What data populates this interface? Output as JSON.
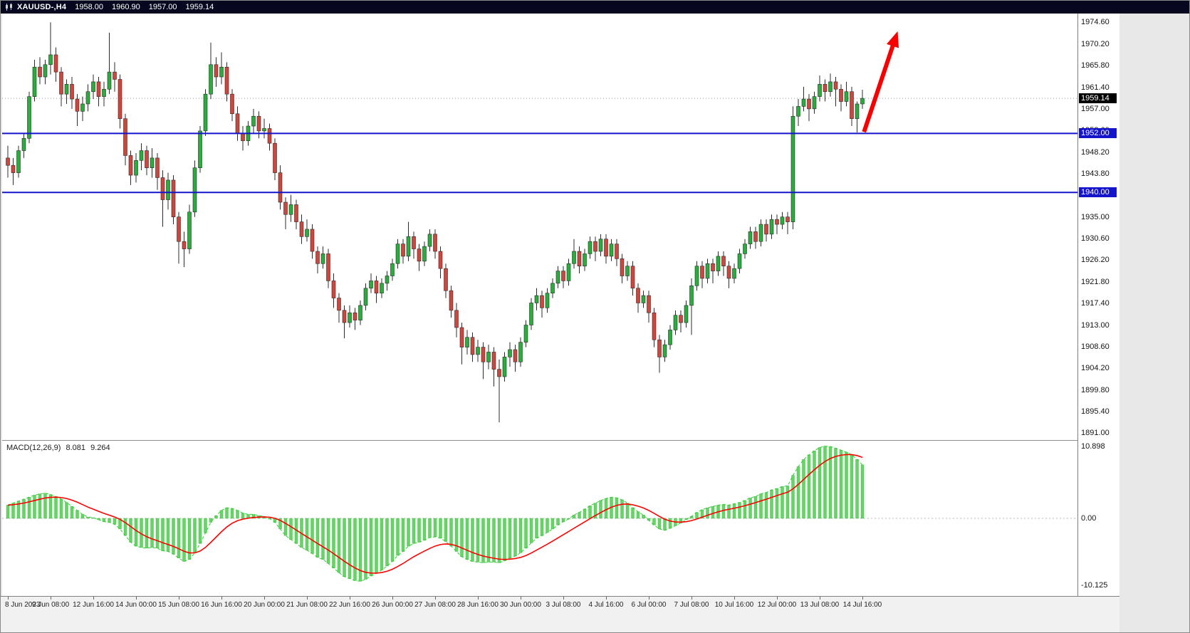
{
  "header": {
    "symbol_period": "XAUUSD-,H4",
    "open": "1958.00",
    "high": "1960.90",
    "low": "1957.00",
    "close": "1959.14"
  },
  "macd_panel": {
    "label": "MACD(12,26,9)",
    "main_value": "8.081",
    "signal_value": "9.264"
  },
  "colors": {
    "header_bg": "#07071f",
    "bull": "#27ae3b",
    "bear": "#d0453c",
    "wick": "#2c2c2c",
    "histogram": "#63d763",
    "signal_line": "#ff0000",
    "macd_dash": "#2fd02f",
    "level_line": "#1414cc",
    "level_label_bg": "#1414cc",
    "current_label_bg": "#000000",
    "arrow": "#f80000"
  },
  "chart_data": {
    "type": "candlestick",
    "symbol": "XAUUSD",
    "timeframe": "H4",
    "title": "XAUUSD-,H4",
    "price_range": {
      "max": 1976.4,
      "min": 1889.6
    },
    "price_axis_ticks": [
      "1974.60",
      "1970.20",
      "1965.80",
      "1961.40",
      "1957.00",
      "1952.60",
      "1948.20",
      "1943.80",
      "1939.40",
      "1935.00",
      "1930.60",
      "1926.20",
      "1921.80",
      "1917.40",
      "1913.00",
      "1908.60",
      "1904.20",
      "1899.80",
      "1895.40",
      "1891.00"
    ],
    "current_price": {
      "value": 1959.14,
      "label": "1959.14"
    },
    "levels": [
      {
        "value": 1952.0,
        "label": "1952.00"
      },
      {
        "value": 1940.0,
        "label": "1940.00"
      }
    ],
    "time_labels": [
      {
        "index": 0,
        "text": "8 Jun 2023"
      },
      {
        "index": 8,
        "text": "9 Jun 08:00"
      },
      {
        "index": 16,
        "text": "12 Jun 16:00"
      },
      {
        "index": 24,
        "text": "14 Jun 00:00"
      },
      {
        "index": 32,
        "text": "15 Jun 08:00"
      },
      {
        "index": 40,
        "text": "16 Jun 16:00"
      },
      {
        "index": 48,
        "text": "20 Jun 00:00"
      },
      {
        "index": 56,
        "text": "21 Jun 08:00"
      },
      {
        "index": 64,
        "text": "22 Jun 16:00"
      },
      {
        "index": 72,
        "text": "26 Jun 00:00"
      },
      {
        "index": 80,
        "text": "27 Jun 08:00"
      },
      {
        "index": 88,
        "text": "28 Jun 16:00"
      },
      {
        "index": 96,
        "text": "30 Jun 00:00"
      },
      {
        "index": 104,
        "text": "3 Jul 08:00"
      },
      {
        "index": 112,
        "text": "4 Jul 16:00"
      },
      {
        "index": 120,
        "text": "6 Jul 00:00"
      },
      {
        "index": 128,
        "text": "7 Jul 08:00"
      },
      {
        "index": 136,
        "text": "10 Jul 16:00"
      },
      {
        "index": 144,
        "text": "12 Jul 00:00"
      },
      {
        "index": 152,
        "text": "13 Jul 08:00"
      },
      {
        "index": 160,
        "text": "14 Jul 16:00"
      }
    ],
    "candles": [
      [
        1947.0,
        1949.5,
        1943.0,
        1945.5
      ],
      [
        1945.5,
        1947.0,
        1941.5,
        1944.0
      ],
      [
        1944.0,
        1949.5,
        1943.0,
        1948.5
      ],
      [
        1948.5,
        1952.0,
        1947.0,
        1951.0
      ],
      [
        1951.0,
        1960.5,
        1950.0,
        1959.5
      ],
      [
        1959.5,
        1967.0,
        1958.5,
        1965.5
      ],
      [
        1965.5,
        1967.5,
        1962.0,
        1963.5
      ],
      [
        1963.5,
        1967.0,
        1962.0,
        1966.0
      ],
      [
        1966.0,
        1974.6,
        1964.0,
        1968.0
      ],
      [
        1968.0,
        1969.5,
        1962.5,
        1964.5
      ],
      [
        1964.5,
        1965.5,
        1957.5,
        1960.0
      ],
      [
        1960.0,
        1963.0,
        1958.0,
        1962.0
      ],
      [
        1962.0,
        1963.5,
        1957.0,
        1959.0
      ],
      [
        1959.0,
        1960.0,
        1953.5,
        1956.5
      ],
      [
        1956.5,
        1959.5,
        1954.5,
        1958.0
      ],
      [
        1958.0,
        1962.0,
        1956.5,
        1960.5
      ],
      [
        1960.5,
        1964.0,
        1959.0,
        1962.5
      ],
      [
        1962.5,
        1963.5,
        1957.5,
        1959.5
      ],
      [
        1959.5,
        1962.5,
        1957.5,
        1961.0
      ],
      [
        1961.0,
        1972.5,
        1960.0,
        1964.5
      ],
      [
        1964.5,
        1966.5,
        1960.5,
        1963.0
      ],
      [
        1963.0,
        1964.0,
        1953.0,
        1955.0
      ],
      [
        1955.0,
        1956.0,
        1945.5,
        1947.5
      ],
      [
        1947.5,
        1948.5,
        1941.5,
        1943.5
      ],
      [
        1943.5,
        1948.0,
        1942.0,
        1946.5
      ],
      [
        1946.5,
        1950.0,
        1944.5,
        1948.5
      ],
      [
        1948.5,
        1949.5,
        1943.5,
        1945.0
      ],
      [
        1945.0,
        1949.0,
        1943.0,
        1947.0
      ],
      [
        1947.0,
        1948.0,
        1940.5,
        1943.0
      ],
      [
        1943.0,
        1944.5,
        1933.0,
        1938.5
      ],
      [
        1938.5,
        1944.0,
        1936.5,
        1942.5
      ],
      [
        1942.5,
        1943.5,
        1933.5,
        1935.0
      ],
      [
        1935.0,
        1936.0,
        1925.5,
        1930.0
      ],
      [
        1930.0,
        1932.0,
        1924.8,
        1928.5
      ],
      [
        1928.5,
        1937.5,
        1927.5,
        1936.0
      ],
      [
        1936.0,
        1946.5,
        1935.0,
        1945.0
      ],
      [
        1945.0,
        1953.5,
        1944.0,
        1952.5
      ],
      [
        1952.5,
        1961.0,
        1951.5,
        1960.0
      ],
      [
        1960.0,
        1970.5,
        1959.0,
        1966.0
      ],
      [
        1966.0,
        1967.5,
        1961.5,
        1963.5
      ],
      [
        1963.5,
        1968.5,
        1962.0,
        1965.5
      ],
      [
        1965.5,
        1966.5,
        1958.5,
        1960.0
      ],
      [
        1960.0,
        1961.0,
        1954.5,
        1956.0
      ],
      [
        1956.0,
        1957.5,
        1950.5,
        1952.0
      ],
      [
        1952.0,
        1953.5,
        1948.5,
        1950.5
      ],
      [
        1950.5,
        1954.5,
        1949.5,
        1953.5
      ],
      [
        1953.5,
        1957.0,
        1952.0,
        1955.5
      ],
      [
        1955.5,
        1956.5,
        1951.0,
        1952.5
      ],
      [
        1952.5,
        1955.0,
        1951.0,
        1953.0
      ],
      [
        1953.0,
        1954.0,
        1948.5,
        1950.0
      ],
      [
        1950.0,
        1951.0,
        1942.5,
        1944.0
      ],
      [
        1944.0,
        1945.5,
        1936.5,
        1938.0
      ],
      [
        1938.0,
        1939.0,
        1932.5,
        1935.5
      ],
      [
        1935.5,
        1939.5,
        1934.0,
        1937.5
      ],
      [
        1937.5,
        1938.5,
        1932.5,
        1934.0
      ],
      [
        1934.0,
        1935.5,
        1929.5,
        1931.0
      ],
      [
        1931.0,
        1934.5,
        1930.0,
        1932.5
      ],
      [
        1932.5,
        1933.5,
        1926.5,
        1928.0
      ],
      [
        1928.0,
        1929.0,
        1923.5,
        1925.5
      ],
      [
        1925.5,
        1929.0,
        1924.5,
        1927.5
      ],
      [
        1927.5,
        1928.5,
        1920.5,
        1922.0
      ],
      [
        1922.0,
        1923.5,
        1916.5,
        1918.5
      ],
      [
        1918.5,
        1919.5,
        1913.5,
        1916.0
      ],
      [
        1916.0,
        1917.0,
        1910.3,
        1913.5
      ],
      [
        1913.5,
        1917.0,
        1912.5,
        1915.5
      ],
      [
        1915.5,
        1916.5,
        1912.0,
        1914.0
      ],
      [
        1914.0,
        1918.0,
        1913.0,
        1917.0
      ],
      [
        1917.0,
        1921.5,
        1916.0,
        1920.5
      ],
      [
        1920.5,
        1923.5,
        1919.5,
        1922.0
      ],
      [
        1922.0,
        1923.0,
        1917.5,
        1919.5
      ],
      [
        1919.5,
        1922.5,
        1918.5,
        1921.5
      ],
      [
        1921.5,
        1924.0,
        1920.0,
        1923.0
      ],
      [
        1923.0,
        1926.5,
        1922.0,
        1925.5
      ],
      [
        1925.5,
        1930.5,
        1924.5,
        1929.5
      ],
      [
        1929.5,
        1930.5,
        1925.5,
        1927.0
      ],
      [
        1927.0,
        1934.0,
        1926.0,
        1931.0
      ],
      [
        1931.0,
        1932.0,
        1926.5,
        1928.5
      ],
      [
        1928.5,
        1929.5,
        1924.0,
        1926.0
      ],
      [
        1926.0,
        1930.0,
        1925.0,
        1929.0
      ],
      [
        1929.0,
        1932.5,
        1928.0,
        1931.5
      ],
      [
        1931.5,
        1932.5,
        1926.5,
        1928.0
      ],
      [
        1928.0,
        1929.0,
        1922.5,
        1924.5
      ],
      [
        1924.5,
        1925.5,
        1918.5,
        1920.0
      ],
      [
        1920.0,
        1921.0,
        1914.5,
        1916.0
      ],
      [
        1916.0,
        1917.5,
        1910.5,
        1912.5
      ],
      [
        1912.5,
        1913.5,
        1905.0,
        1908.5
      ],
      [
        1908.5,
        1912.0,
        1907.0,
        1910.5
      ],
      [
        1910.5,
        1911.5,
        1905.5,
        1907.0
      ],
      [
        1907.0,
        1910.0,
        1905.5,
        1908.5
      ],
      [
        1908.5,
        1909.5,
        1902.0,
        1905.5
      ],
      [
        1905.5,
        1909.0,
        1904.0,
        1907.5
      ],
      [
        1907.5,
        1908.5,
        1900.5,
        1904.0
      ],
      [
        1904.0,
        1906.0,
        1893.2,
        1902.5
      ],
      [
        1902.5,
        1907.5,
        1901.5,
        1906.5
      ],
      [
        1906.5,
        1909.5,
        1904.5,
        1908.0
      ],
      [
        1908.0,
        1909.0,
        1903.5,
        1905.5
      ],
      [
        1905.5,
        1910.5,
        1904.5,
        1909.5
      ],
      [
        1909.5,
        1914.0,
        1908.5,
        1913.0
      ],
      [
        1913.0,
        1918.5,
        1912.0,
        1917.5
      ],
      [
        1917.5,
        1920.5,
        1916.0,
        1919.0
      ],
      [
        1919.0,
        1920.0,
        1914.5,
        1916.5
      ],
      [
        1916.5,
        1920.5,
        1915.5,
        1919.5
      ],
      [
        1919.5,
        1922.5,
        1918.5,
        1921.5
      ],
      [
        1921.5,
        1925.0,
        1920.5,
        1924.0
      ],
      [
        1924.0,
        1925.0,
        1920.5,
        1922.0
      ],
      [
        1922.0,
        1926.5,
        1921.0,
        1925.5
      ],
      [
        1925.5,
        1930.5,
        1924.5,
        1928.0
      ],
      [
        1928.0,
        1929.0,
        1923.5,
        1925.0
      ],
      [
        1925.0,
        1928.5,
        1924.0,
        1927.5
      ],
      [
        1927.5,
        1931.0,
        1926.5,
        1930.0
      ],
      [
        1930.0,
        1931.0,
        1926.0,
        1928.0
      ],
      [
        1928.0,
        1931.5,
        1927.0,
        1930.5
      ],
      [
        1930.5,
        1931.5,
        1925.5,
        1927.0
      ],
      [
        1927.0,
        1930.5,
        1926.0,
        1929.5
      ],
      [
        1929.5,
        1930.5,
        1925.0,
        1926.5
      ],
      [
        1926.5,
        1927.5,
        1921.5,
        1923.0
      ],
      [
        1923.0,
        1926.0,
        1922.0,
        1925.0
      ],
      [
        1925.0,
        1926.0,
        1919.0,
        1920.5
      ],
      [
        1920.5,
        1921.5,
        1915.5,
        1917.5
      ],
      [
        1917.5,
        1920.0,
        1916.5,
        1919.0
      ],
      [
        1919.0,
        1920.0,
        1913.5,
        1915.5
      ],
      [
        1915.5,
        1916.5,
        1908.5,
        1910.0
      ],
      [
        1910.0,
        1911.0,
        1903.3,
        1906.5
      ],
      [
        1906.5,
        1910.0,
        1905.5,
        1909.0
      ],
      [
        1909.0,
        1913.0,
        1908.0,
        1912.0
      ],
      [
        1912.0,
        1916.0,
        1911.0,
        1915.0
      ],
      [
        1915.0,
        1916.0,
        1911.5,
        1913.5
      ],
      [
        1913.5,
        1918.0,
        1912.5,
        1917.0
      ],
      [
        1917.0,
        1922.5,
        1911.0,
        1921.0
      ],
      [
        1921.0,
        1926.0,
        1920.0,
        1925.0
      ],
      [
        1925.0,
        1926.0,
        1920.5,
        1922.5
      ],
      [
        1922.5,
        1926.5,
        1921.5,
        1925.5
      ],
      [
        1925.5,
        1926.5,
        1921.5,
        1924.0
      ],
      [
        1924.0,
        1928.0,
        1923.0,
        1927.0
      ],
      [
        1927.0,
        1928.0,
        1923.0,
        1925.0
      ],
      [
        1925.0,
        1926.0,
        1920.5,
        1922.5
      ],
      [
        1922.5,
        1925.5,
        1921.5,
        1924.5
      ],
      [
        1924.5,
        1928.5,
        1923.5,
        1927.5
      ],
      [
        1927.5,
        1930.5,
        1926.5,
        1929.5
      ],
      [
        1929.5,
        1933.0,
        1928.5,
        1932.0
      ],
      [
        1932.0,
        1933.0,
        1928.5,
        1930.0
      ],
      [
        1930.0,
        1934.5,
        1929.0,
        1933.5
      ],
      [
        1933.5,
        1934.5,
        1930.0,
        1931.5
      ],
      [
        1931.5,
        1935.5,
        1930.5,
        1934.5
      ],
      [
        1934.5,
        1935.5,
        1931.5,
        1933.5
      ],
      [
        1933.5,
        1936.0,
        1932.5,
        1935.0
      ],
      [
        1935.0,
        1936.0,
        1931.5,
        1934.0
      ],
      [
        1934.0,
        1957.5,
        1932.5,
        1955.5
      ],
      [
        1955.5,
        1959.0,
        1953.5,
        1957.5
      ],
      [
        1957.5,
        1961.5,
        1956.5,
        1959.0
      ],
      [
        1959.0,
        1960.0,
        1954.5,
        1957.0
      ],
      [
        1957.0,
        1960.5,
        1956.0,
        1959.5
      ],
      [
        1959.5,
        1963.8,
        1958.5,
        1962.0
      ],
      [
        1962.0,
        1963.0,
        1958.5,
        1960.5
      ],
      [
        1960.5,
        1964.2,
        1959.5,
        1962.5
      ],
      [
        1962.5,
        1963.5,
        1957.5,
        1961.0
      ],
      [
        1961.0,
        1962.0,
        1956.5,
        1958.5
      ],
      [
        1958.5,
        1962.5,
        1957.5,
        1960.5
      ],
      [
        1960.5,
        1961.5,
        1953.5,
        1955.0
      ],
      [
        1955.0,
        1958.5,
        1952.2,
        1958.0
      ],
      [
        1958.0,
        1960.9,
        1957.0,
        1959.14
      ]
    ],
    "macd": {
      "params": "12,26,9",
      "histogram": [
        2.0,
        2.3,
        2.6,
        2.9,
        3.2,
        3.5,
        3.7,
        3.8,
        3.6,
        3.3,
        2.9,
        2.4,
        1.8,
        1.2,
        0.6,
        0.2,
        0.1,
        -0.2,
        -0.5,
        -0.6,
        -0.9,
        -1.6,
        -2.6,
        -3.6,
        -4.2,
        -4.4,
        -4.5,
        -4.4,
        -4.5,
        -4.9,
        -5.0,
        -5.4,
        -6.0,
        -6.5,
        -6.2,
        -5.2,
        -3.8,
        -2.2,
        -0.6,
        0.4,
        1.2,
        1.6,
        1.5,
        1.2,
        0.8,
        0.6,
        0.6,
        0.4,
        0.3,
        0.0,
        -0.6,
        -1.6,
        -2.6,
        -3.2,
        -3.8,
        -4.4,
        -4.8,
        -5.3,
        -5.9,
        -6.2,
        -6.8,
        -7.5,
        -8.2,
        -8.8,
        -9.1,
        -9.4,
        -9.5,
        -9.2,
        -8.7,
        -8.3,
        -7.8,
        -7.2,
        -6.5,
        -5.6,
        -5.0,
        -4.2,
        -3.8,
        -3.6,
        -3.3,
        -2.9,
        -2.8,
        -3.0,
        -3.5,
        -4.2,
        -5.0,
        -5.8,
        -6.2,
        -6.5,
        -6.6,
        -6.7,
        -6.6,
        -6.6,
        -6.7,
        -6.4,
        -6.0,
        -5.7,
        -5.2,
        -4.5,
        -3.7,
        -3.0,
        -2.6,
        -2.1,
        -1.6,
        -1.0,
        -0.5,
        -0.1,
        0.5,
        0.9,
        1.4,
        1.9,
        2.3,
        2.7,
        3.0,
        3.2,
        3.1,
        2.8,
        2.3,
        1.6,
        1.0,
        0.5,
        -0.3,
        -1.0,
        -1.6,
        -1.8,
        -1.5,
        -1.1,
        -0.7,
        -0.2,
        0.3,
        0.9,
        1.3,
        1.6,
        1.8,
        2.0,
        2.1,
        2.0,
        2.2,
        2.4,
        2.7,
        3.1,
        3.3,
        3.7,
        3.9,
        4.3,
        4.5,
        4.8,
        4.9,
        6.5,
        7.8,
        8.9,
        9.6,
        10.2,
        10.7,
        10.9,
        10.85,
        10.6,
        10.3,
        10.0,
        9.6,
        8.9,
        8.081
      ],
      "scale": {
        "max": {
          "value": 10.898,
          "label": "10.898"
        },
        "zero": {
          "value": 0,
          "label": "0.00"
        },
        "min": {
          "value": -10.125,
          "label": "-10.125"
        }
      }
    },
    "arrow": {
      "from": {
        "index": 160.3,
        "price": 1952.3
      },
      "to": {
        "index": 166.6,
        "price": 1972.8
      }
    }
  }
}
